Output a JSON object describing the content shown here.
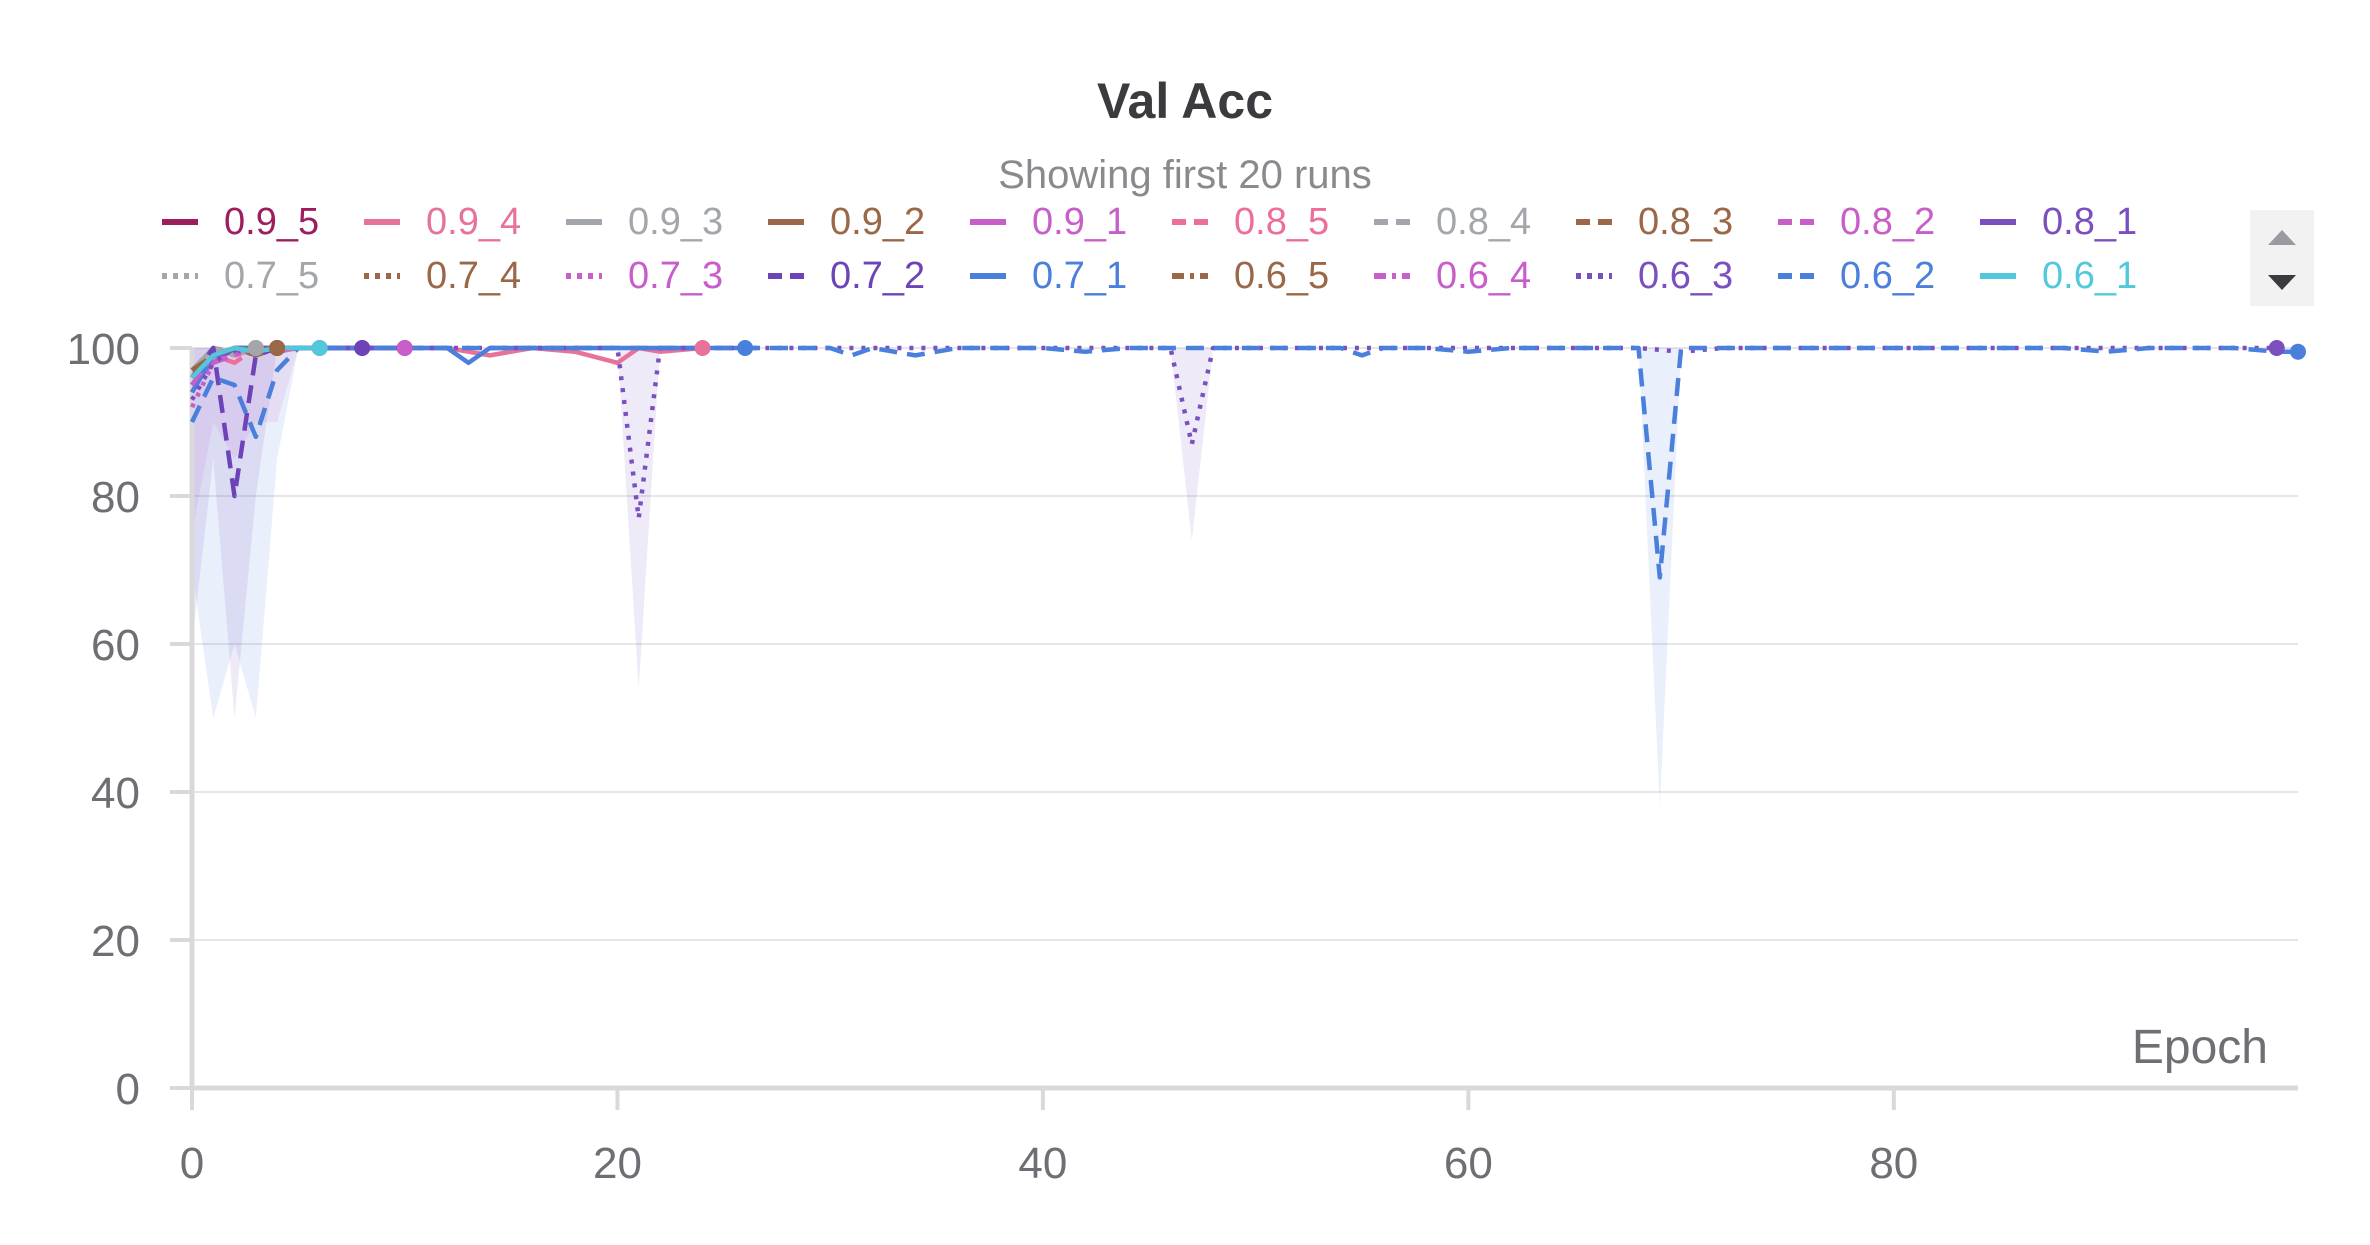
{
  "chart_data": {
    "type": "line",
    "title": "Val Acc",
    "subtitle": "Showing first 20 runs",
    "xlabel": "Epoch",
    "ylabel": "",
    "xlim": [
      0,
      99
    ],
    "ylim": [
      0,
      100
    ],
    "x_ticks": [
      0,
      20,
      40,
      60,
      80
    ],
    "y_ticks": [
      0,
      20,
      40,
      60,
      80,
      100
    ],
    "grid": true,
    "legend_position": "top",
    "series": [
      {
        "name": "0.9_5",
        "color": "#9c1e5c",
        "dash": "solid",
        "points": [
          [
            0,
            95
          ],
          [
            1,
            99
          ],
          [
            2,
            100
          ],
          [
            3,
            99.5
          ],
          [
            4,
            100
          ],
          [
            5,
            100
          ],
          [
            6,
            100
          ],
          [
            7,
            100
          ],
          [
            8,
            100
          ],
          [
            9,
            100
          ],
          [
            10,
            100
          ]
        ]
      },
      {
        "name": "0.9_4",
        "color": "#e8739a",
        "dash": "solid",
        "points": [
          [
            0,
            96
          ],
          [
            1,
            99
          ],
          [
            2,
            100
          ],
          [
            4,
            100
          ],
          [
            6,
            100
          ],
          [
            8,
            100
          ],
          [
            10,
            100
          ],
          [
            12,
            100
          ],
          [
            14,
            99
          ],
          [
            16,
            100
          ],
          [
            18,
            99.5
          ],
          [
            20,
            98
          ],
          [
            21,
            100
          ],
          [
            22,
            99.5
          ],
          [
            24,
            100
          ]
        ]
      },
      {
        "name": "0.9_3",
        "color": "#a3a6aa",
        "dash": "solid",
        "points": [
          [
            0,
            97
          ],
          [
            1,
            100
          ],
          [
            2,
            99
          ],
          [
            3,
            100
          ]
        ]
      },
      {
        "name": "0.9_2",
        "color": "#9a6748",
        "dash": "solid",
        "points": [
          [
            0,
            96
          ],
          [
            1,
            99
          ],
          [
            2,
            100
          ],
          [
            3,
            99
          ],
          [
            4,
            100
          ]
        ]
      },
      {
        "name": "0.9_1",
        "color": "#c85ec9",
        "dash": "solid",
        "points": [
          [
            0,
            95
          ],
          [
            1,
            98
          ],
          [
            2,
            100
          ],
          [
            3,
            99.5
          ],
          [
            4,
            100
          ],
          [
            6,
            100
          ],
          [
            8,
            100
          ],
          [
            10,
            100
          ]
        ]
      },
      {
        "name": "0.8_5",
        "color": "#ee6e97",
        "dash": "dashed",
        "points": [
          [
            0,
            94
          ],
          [
            1,
            99
          ],
          [
            2,
            98
          ],
          [
            3,
            100
          ],
          [
            4,
            99.5
          ],
          [
            5,
            100
          ],
          [
            6,
            100
          ]
        ]
      },
      {
        "name": "0.8_4",
        "color": "#a3a6aa",
        "dash": "dashed",
        "points": [
          [
            0,
            96
          ],
          [
            1,
            100
          ],
          [
            2,
            99.5
          ],
          [
            3,
            100
          ]
        ]
      },
      {
        "name": "0.8_3",
        "color": "#9a6748",
        "dash": "dashed",
        "points": [
          [
            0,
            97
          ],
          [
            1,
            99
          ],
          [
            2,
            100
          ],
          [
            3,
            100
          ],
          [
            4,
            100
          ]
        ]
      },
      {
        "name": "0.8_2",
        "color": "#c85ec9",
        "dash": "dashed",
        "points": [
          [
            0,
            95
          ],
          [
            1,
            98
          ],
          [
            2,
            99
          ],
          [
            3,
            100
          ],
          [
            4,
            100
          ]
        ]
      },
      {
        "name": "0.8_1",
        "color": "#7a4fbf",
        "dash": "solid",
        "points": [
          [
            0,
            96
          ],
          [
            1,
            99
          ],
          [
            2,
            99.5
          ],
          [
            3,
            100
          ],
          [
            4,
            100
          ],
          [
            6,
            100
          ],
          [
            8,
            100
          ]
        ]
      },
      {
        "name": "0.7_5",
        "color": "#a3a6aa",
        "dash": "dotted",
        "points": [
          [
            0,
            97
          ],
          [
            1,
            100
          ],
          [
            2,
            99
          ],
          [
            3,
            100
          ]
        ]
      },
      {
        "name": "0.7_4",
        "color": "#9a6748",
        "dash": "dotted",
        "points": [
          [
            0,
            95
          ],
          [
            1,
            99
          ],
          [
            2,
            100
          ],
          [
            3,
            99
          ],
          [
            4,
            100
          ]
        ]
      },
      {
        "name": "0.7_3",
        "color": "#c85ec9",
        "dash": "dotted",
        "points": [
          [
            0,
            92
          ],
          [
            1,
            98
          ],
          [
            2,
            99
          ],
          [
            3,
            100
          ],
          [
            4,
            99.5
          ],
          [
            5,
            100
          ],
          [
            6,
            100
          ],
          [
            8,
            100
          ],
          [
            10,
            100
          ]
        ]
      },
      {
        "name": "0.7_2",
        "color": "#6c44b8",
        "dash": "dashed",
        "points": [
          [
            0,
            96
          ],
          [
            1,
            100
          ],
          [
            2,
            80
          ],
          [
            3,
            99
          ],
          [
            4,
            100
          ],
          [
            5,
            100
          ],
          [
            6,
            100
          ],
          [
            7,
            100
          ],
          [
            8,
            100
          ]
        ]
      },
      {
        "name": "0.7_1",
        "color": "#4a7fdc",
        "dash": "solid",
        "points": [
          [
            0,
            94
          ],
          [
            1,
            99
          ],
          [
            2,
            100
          ],
          [
            4,
            100
          ],
          [
            6,
            100
          ],
          [
            8,
            100
          ],
          [
            9,
            100
          ],
          [
            10,
            100
          ],
          [
            12,
            100
          ],
          [
            13,
            98
          ],
          [
            14,
            100
          ],
          [
            16,
            100
          ],
          [
            18,
            100
          ],
          [
            20,
            100
          ],
          [
            22,
            100
          ],
          [
            24,
            100
          ],
          [
            26,
            100
          ]
        ]
      },
      {
        "name": "0.6_5",
        "color": "#9a6748",
        "dash": "dashdot",
        "points": [
          [
            0,
            97
          ],
          [
            1,
            99
          ],
          [
            2,
            100
          ],
          [
            3,
            100
          ],
          [
            4,
            100
          ]
        ]
      },
      {
        "name": "0.6_4",
        "color": "#c85ec9",
        "dash": "dashdot",
        "points": [
          [
            0,
            95
          ],
          [
            1,
            99
          ],
          [
            2,
            100
          ],
          [
            3,
            99.5
          ],
          [
            4,
            100
          ],
          [
            5,
            100
          ],
          [
            6,
            100
          ]
        ]
      },
      {
        "name": "0.6_3",
        "color": "#7a4fbf",
        "dash": "dotted",
        "points": [
          [
            0,
            93
          ],
          [
            1,
            98
          ],
          [
            2,
            100
          ],
          [
            4,
            100
          ],
          [
            6,
            100
          ],
          [
            8,
            100
          ],
          [
            10,
            100
          ],
          [
            12,
            100
          ],
          [
            14,
            100
          ],
          [
            16,
            100
          ],
          [
            18,
            100
          ],
          [
            20,
            100
          ],
          [
            21,
            77
          ],
          [
            22,
            100
          ],
          [
            24,
            100
          ],
          [
            26,
            100
          ],
          [
            28,
            100
          ],
          [
            30,
            100
          ],
          [
            32,
            100
          ],
          [
            34,
            100
          ],
          [
            36,
            100
          ],
          [
            38,
            100
          ],
          [
            40,
            100
          ],
          [
            42,
            100
          ],
          [
            44,
            100
          ],
          [
            46,
            100
          ],
          [
            47,
            87
          ],
          [
            48,
            100
          ],
          [
            50,
            100
          ],
          [
            52,
            100
          ],
          [
            54,
            100
          ],
          [
            56,
            100
          ],
          [
            58,
            100
          ],
          [
            60,
            100
          ],
          [
            62,
            100
          ],
          [
            64,
            100
          ],
          [
            66,
            100
          ],
          [
            68,
            100
          ],
          [
            70,
            99.5
          ],
          [
            72,
            100
          ],
          [
            74,
            100
          ],
          [
            76,
            100
          ],
          [
            78,
            100
          ],
          [
            80,
            100
          ],
          [
            82,
            100
          ],
          [
            84,
            100
          ],
          [
            86,
            100
          ],
          [
            88,
            100
          ],
          [
            90,
            100
          ],
          [
            92,
            100
          ],
          [
            94,
            100
          ],
          [
            96,
            100
          ],
          [
            98,
            100
          ]
        ]
      },
      {
        "name": "0.6_2",
        "color": "#4a7fdc",
        "dash": "dashed",
        "points": [
          [
            0,
            90
          ],
          [
            1,
            96
          ],
          [
            2,
            95
          ],
          [
            3,
            88
          ],
          [
            4,
            97
          ],
          [
            5,
            100
          ],
          [
            6,
            100
          ],
          [
            8,
            100
          ],
          [
            10,
            100
          ],
          [
            12,
            100
          ],
          [
            14,
            100
          ],
          [
            16,
            100
          ],
          [
            18,
            100
          ],
          [
            20,
            100
          ],
          [
            22,
            100
          ],
          [
            24,
            100
          ],
          [
            26,
            100
          ],
          [
            28,
            100
          ],
          [
            30,
            100
          ],
          [
            31,
            99
          ],
          [
            32,
            100
          ],
          [
            34,
            99
          ],
          [
            36,
            100
          ],
          [
            38,
            100
          ],
          [
            40,
            100
          ],
          [
            42,
            99.5
          ],
          [
            44,
            100
          ],
          [
            46,
            100
          ],
          [
            48,
            100
          ],
          [
            50,
            100
          ],
          [
            52,
            100
          ],
          [
            54,
            100
          ],
          [
            55,
            99
          ],
          [
            56,
            100
          ],
          [
            58,
            100
          ],
          [
            60,
            99.5
          ],
          [
            62,
            100
          ],
          [
            64,
            100
          ],
          [
            66,
            100
          ],
          [
            68,
            100
          ],
          [
            69,
            69
          ],
          [
            70,
            100
          ],
          [
            72,
            100
          ],
          [
            74,
            100
          ],
          [
            76,
            100
          ],
          [
            78,
            100
          ],
          [
            80,
            100
          ],
          [
            82,
            100
          ],
          [
            84,
            100
          ],
          [
            86,
            100
          ],
          [
            88,
            100
          ],
          [
            90,
            99.5
          ],
          [
            92,
            100
          ],
          [
            94,
            100
          ],
          [
            96,
            100
          ],
          [
            98,
            99.5
          ],
          [
            99,
            99.5
          ]
        ]
      },
      {
        "name": "0.6_1",
        "color": "#52c8dc",
        "dash": "solid",
        "points": [
          [
            0,
            96
          ],
          [
            1,
            99
          ],
          [
            2,
            100
          ],
          [
            3,
            99.5
          ],
          [
            4,
            100
          ],
          [
            5,
            100
          ],
          [
            6,
            100
          ]
        ]
      }
    ],
    "bands": [
      {
        "color": "#7a4fbf",
        "points": [
          [
            0,
            60,
            100
          ],
          [
            1,
            85,
            100
          ],
          [
            2,
            50,
            100
          ],
          [
            3,
            80,
            100
          ],
          [
            4,
            100,
            100
          ]
        ]
      },
      {
        "color": "#4a7fdc",
        "points": [
          [
            0,
            70,
            100
          ],
          [
            1,
            50,
            100
          ],
          [
            2,
            60,
            100
          ],
          [
            3,
            50,
            100
          ],
          [
            4,
            85,
            100
          ],
          [
            5,
            100,
            100
          ]
        ]
      },
      {
        "color": "#c85ec9",
        "points": [
          [
            0,
            75,
            100
          ],
          [
            1,
            90,
            100
          ],
          [
            2,
            85,
            100
          ],
          [
            3,
            90,
            100
          ],
          [
            4,
            90,
            100
          ],
          [
            5,
            100,
            100
          ]
        ]
      },
      {
        "color": "#7a4fbf",
        "points": [
          [
            20,
            100,
            100
          ],
          [
            21,
            54,
            100
          ],
          [
            22,
            100,
            100
          ]
        ]
      },
      {
        "color": "#7a4fbf",
        "points": [
          [
            46,
            100,
            100
          ],
          [
            47,
            74,
            100
          ],
          [
            48,
            100,
            100
          ]
        ]
      },
      {
        "color": "#4a7fdc",
        "points": [
          [
            68,
            100,
            100
          ],
          [
            69,
            38,
            100
          ],
          [
            70,
            100,
            100
          ]
        ]
      }
    ],
    "end_markers": [
      "0.9_5",
      "0.9_4",
      "0.9_3",
      "0.9_2",
      "0.9_1",
      "0.8_5",
      "0.8_4",
      "0.8_3",
      "0.8_2",
      "0.8_1",
      "0.7_5",
      "0.7_4",
      "0.7_3",
      "0.7_2",
      "0.7_1",
      "0.6_5",
      "0.6_4",
      "0.6_3",
      "0.6_2",
      "0.6_1"
    ]
  },
  "legend_scroll": {
    "up_icon": "triangle-up-icon",
    "down_icon": "triangle-down-icon"
  }
}
